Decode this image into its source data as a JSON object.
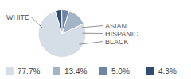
{
  "chart_data": {
    "type": "pie",
    "categories": [
      "WHITE",
      "BLACK",
      "HISPANIC",
      "ASIAN"
    ],
    "values": [
      77.7,
      13.4,
      5.0,
      4.3
    ],
    "value_labels": [
      "77.7%",
      "13.4%",
      "5.0%",
      "4.3%"
    ],
    "colors": [
      "#d5dde7",
      "#a4b4c7",
      "#6e86a2",
      "#2f4d72"
    ],
    "legend": "bottom"
  }
}
